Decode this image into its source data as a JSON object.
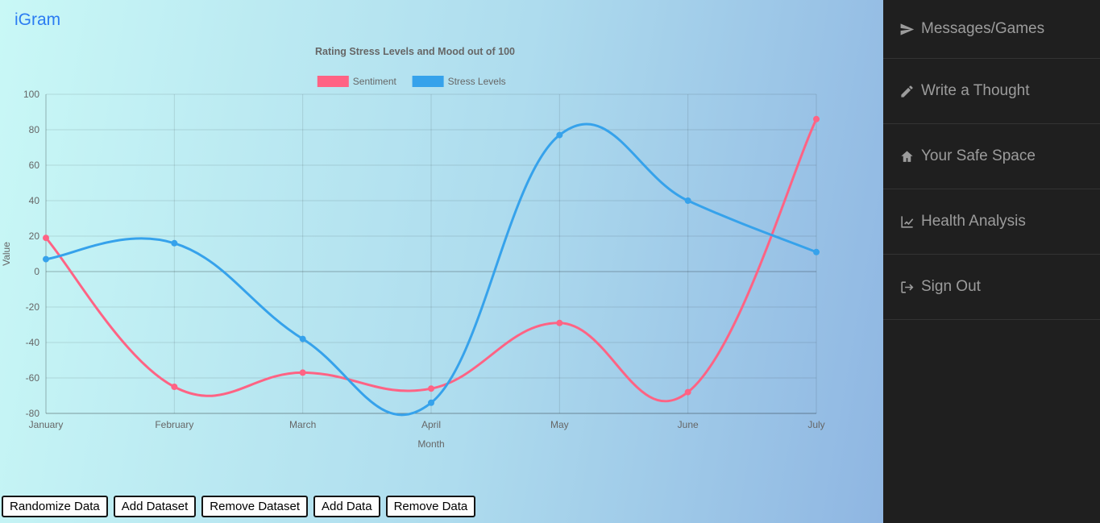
{
  "brand": {
    "name": "iGram"
  },
  "colors": {
    "brand_link": "#2b7cf2",
    "sidebar_bg": "#1f1f1f",
    "sidebar_text": "#9c9c9c"
  },
  "sidebar": {
    "items": [
      {
        "label": "Messages/Games",
        "icon": "paper-plane-icon"
      },
      {
        "label": "Write a Thought",
        "icon": "pencil-icon"
      },
      {
        "label": "Your Safe Space",
        "icon": "home-icon"
      },
      {
        "label": "Health Analysis",
        "icon": "chart-line-icon"
      },
      {
        "label": "Sign Out",
        "icon": "sign-out-icon"
      }
    ]
  },
  "toolbar": {
    "buttons": [
      "Randomize Data",
      "Add Dataset",
      "Remove Dataset",
      "Add Data",
      "Remove Data"
    ]
  },
  "chart_data": {
    "type": "line",
    "title": "Rating Stress Levels and Mood out of 100",
    "categories": [
      "January",
      "February",
      "March",
      "April",
      "May",
      "June",
      "July"
    ],
    "series": [
      {
        "name": "Sentiment",
        "color": "#ff6384",
        "values": [
          19,
          -65,
          -57,
          -66,
          -29,
          -68,
          86
        ]
      },
      {
        "name": "Stress Levels",
        "color": "#36a2eb",
        "values": [
          7,
          16,
          -38,
          -74,
          77,
          40,
          11
        ]
      }
    ],
    "xlabel": "Month",
    "ylabel": "Value",
    "ylim": [
      -80,
      100
    ],
    "ytick": 20,
    "grid": true,
    "legend_position": "top",
    "line_smoothing": 0.4
  }
}
